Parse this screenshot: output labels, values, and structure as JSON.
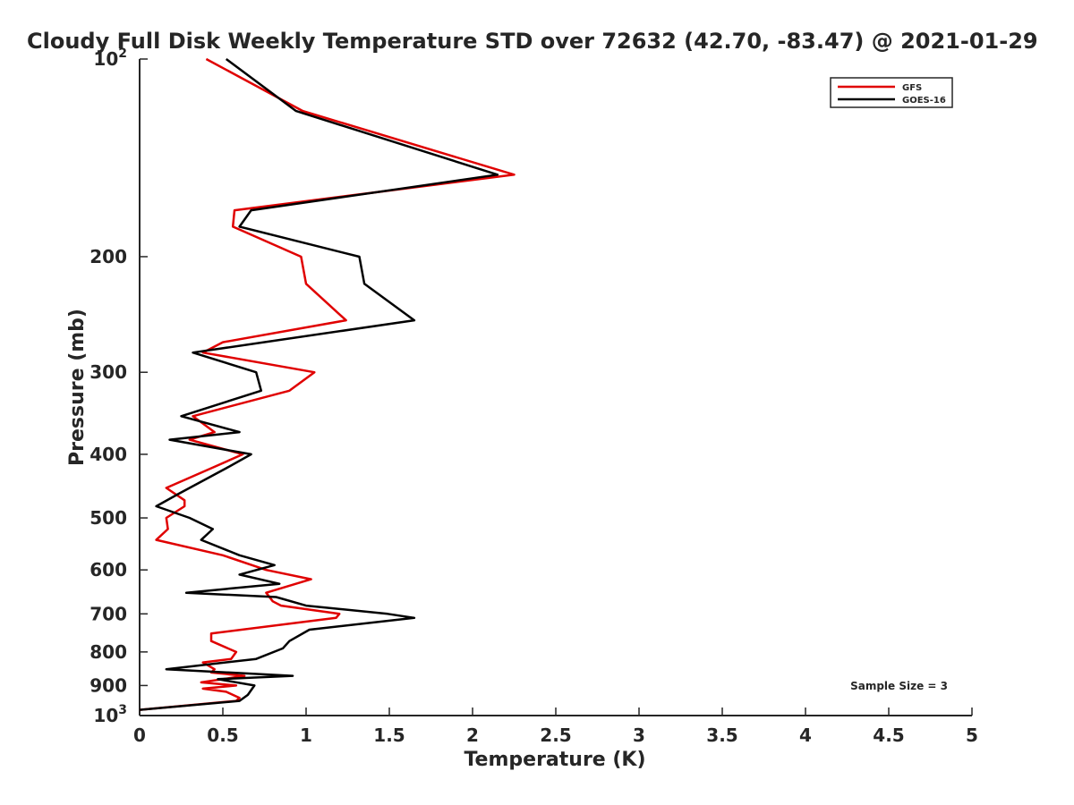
{
  "chart_data": {
    "type": "line",
    "title": "Cloudy Full Disk Weekly Temperature STD over 72632 (42.70, -83.47) @ 2021-01-29",
    "xlabel": "Temperature (K)",
    "ylabel": "Pressure (mb)",
    "xlim": [
      0,
      5
    ],
    "ylim": [
      100,
      1000
    ],
    "y_scale": "log",
    "y_reversed": true,
    "grid": false,
    "legend_position": "top-right",
    "x_ticks": [
      "0",
      "0.5",
      "1",
      "1.5",
      "2",
      "2.5",
      "3",
      "3.5",
      "4",
      "4.5",
      "5"
    ],
    "y_ticks": [
      {
        "value": 100,
        "base": "10",
        "exp": "2"
      },
      {
        "value": 200,
        "label": "200"
      },
      {
        "value": 300,
        "label": "300"
      },
      {
        "value": 400,
        "label": "400"
      },
      {
        "value": 500,
        "label": "500"
      },
      {
        "value": 600,
        "label": "600"
      },
      {
        "value": 700,
        "label": "700"
      },
      {
        "value": 800,
        "label": "800"
      },
      {
        "value": 900,
        "label": "900"
      },
      {
        "value": 1000,
        "base": "10",
        "exp": "3"
      }
    ],
    "annotation": "Sample Size = 3",
    "series": [
      {
        "name": "GFS",
        "color": "#e00000",
        "points": [
          [
            0.4,
            100
          ],
          [
            0.98,
            120
          ],
          [
            2.25,
            150
          ],
          [
            0.57,
            170
          ],
          [
            0.56,
            180
          ],
          [
            0.97,
            200
          ],
          [
            1.0,
            220
          ],
          [
            1.24,
            250
          ],
          [
            0.5,
            270
          ],
          [
            0.38,
            280
          ],
          [
            1.05,
            300
          ],
          [
            0.9,
            320
          ],
          [
            0.32,
            350
          ],
          [
            0.45,
            370
          ],
          [
            0.3,
            380
          ],
          [
            0.62,
            400
          ],
          [
            0.43,
            420
          ],
          [
            0.16,
            450
          ],
          [
            0.27,
            470
          ],
          [
            0.27,
            480
          ],
          [
            0.16,
            500
          ],
          [
            0.17,
            520
          ],
          [
            0.1,
            540
          ],
          [
            0.5,
            570
          ],
          [
            0.76,
            600
          ],
          [
            1.03,
            620
          ],
          [
            0.76,
            650
          ],
          [
            0.8,
            670
          ],
          [
            0.85,
            680
          ],
          [
            1.2,
            700
          ],
          [
            1.18,
            710
          ],
          [
            0.43,
            750
          ],
          [
            0.43,
            770
          ],
          [
            0.58,
            800
          ],
          [
            0.55,
            820
          ],
          [
            0.38,
            830
          ],
          [
            0.45,
            850
          ],
          [
            0.43,
            860
          ],
          [
            0.63,
            870
          ],
          [
            0.37,
            890
          ],
          [
            0.58,
            900
          ],
          [
            0.38,
            910
          ],
          [
            0.52,
            920
          ],
          [
            0.6,
            940
          ],
          [
            0.58,
            950
          ],
          [
            0.0,
            980
          ]
        ]
      },
      {
        "name": "GOES-16",
        "color": "#000000",
        "points": [
          [
            0.52,
            100
          ],
          [
            0.94,
            120
          ],
          [
            2.15,
            150
          ],
          [
            0.67,
            170
          ],
          [
            0.6,
            180
          ],
          [
            1.32,
            200
          ],
          [
            1.35,
            220
          ],
          [
            1.65,
            250
          ],
          [
            0.32,
            280
          ],
          [
            0.7,
            300
          ],
          [
            0.73,
            320
          ],
          [
            0.25,
            350
          ],
          [
            0.6,
            370
          ],
          [
            0.18,
            380
          ],
          [
            0.67,
            400
          ],
          [
            0.52,
            420
          ],
          [
            0.23,
            460
          ],
          [
            0.1,
            480
          ],
          [
            0.3,
            500
          ],
          [
            0.44,
            520
          ],
          [
            0.37,
            540
          ],
          [
            0.6,
            570
          ],
          [
            0.81,
            590
          ],
          [
            0.6,
            610
          ],
          [
            0.84,
            630
          ],
          [
            0.28,
            650
          ],
          [
            0.82,
            660
          ],
          [
            1.0,
            680
          ],
          [
            1.49,
            700
          ],
          [
            1.65,
            710
          ],
          [
            1.02,
            740
          ],
          [
            0.9,
            770
          ],
          [
            0.86,
            790
          ],
          [
            0.7,
            820
          ],
          [
            0.16,
            850
          ],
          [
            0.92,
            870
          ],
          [
            0.47,
            880
          ],
          [
            0.69,
            900
          ],
          [
            0.65,
            930
          ],
          [
            0.6,
            950
          ],
          [
            0.0,
            980
          ]
        ]
      }
    ]
  }
}
